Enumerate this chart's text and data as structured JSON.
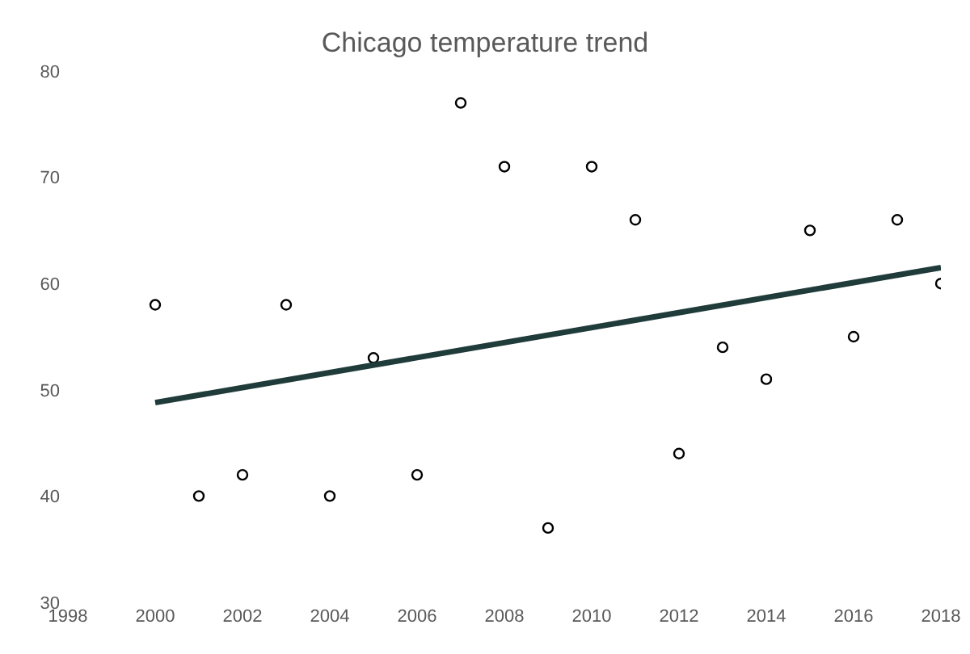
{
  "chart_data": {
    "type": "scatter",
    "title": "Chicago temperature trend",
    "x": [
      2000,
      2001,
      2002,
      2003,
      2004,
      2005,
      2006,
      2007,
      2008,
      2009,
      2010,
      2011,
      2012,
      2013,
      2014,
      2015,
      2016,
      2017,
      2018
    ],
    "series": [
      {
        "type": "scatter",
        "color": "#000000",
        "marker": "circle",
        "values": [
          58,
          40,
          42,
          58,
          40,
          53,
          42,
          77,
          71,
          37,
          71,
          66,
          44,
          54,
          51,
          65,
          55,
          66,
          60
        ]
      },
      {
        "type": "line",
        "color": "#1f3b3a",
        "x": [
          2000,
          2018
        ],
        "values": [
          48.8,
          61.5
        ]
      }
    ],
    "xlim": [
      1998,
      2018
    ],
    "xticks": [
      1998,
      2000,
      2002,
      2004,
      2006,
      2008,
      2010,
      2012,
      2014,
      2016,
      2018
    ],
    "ylim": [
      30,
      80
    ],
    "yticks": [
      30,
      40,
      50,
      60,
      70,
      80
    ],
    "grid": false,
    "legend": false
  }
}
